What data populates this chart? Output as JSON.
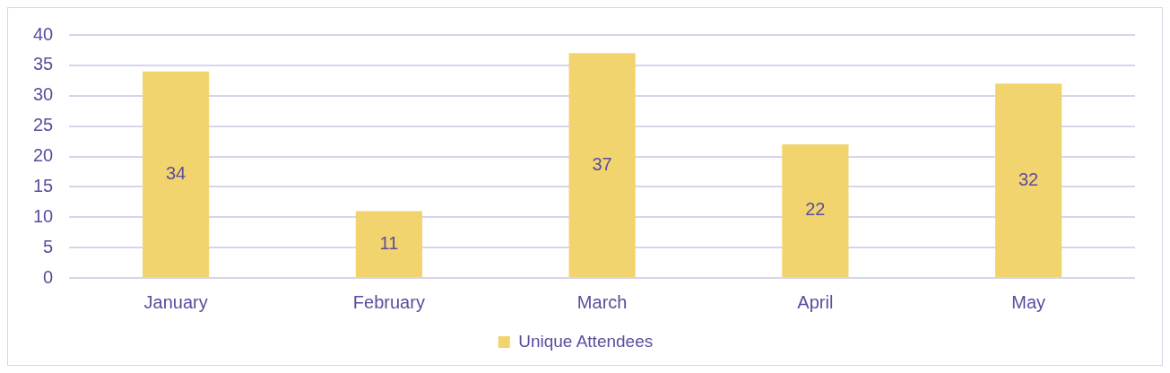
{
  "chart_data": {
    "type": "bar",
    "categories": [
      "January",
      "February",
      "March",
      "April",
      "May"
    ],
    "series": [
      {
        "name": "Unique Attendees",
        "color": "#f2d46e",
        "values": [
          34,
          11,
          37,
          22,
          32
        ]
      }
    ],
    "ylim": [
      0,
      40
    ],
    "yticks": [
      0,
      5,
      10,
      15,
      20,
      25,
      30,
      35,
      40
    ],
    "grid": "y",
    "legend": "bottom",
    "data_labels": true
  }
}
